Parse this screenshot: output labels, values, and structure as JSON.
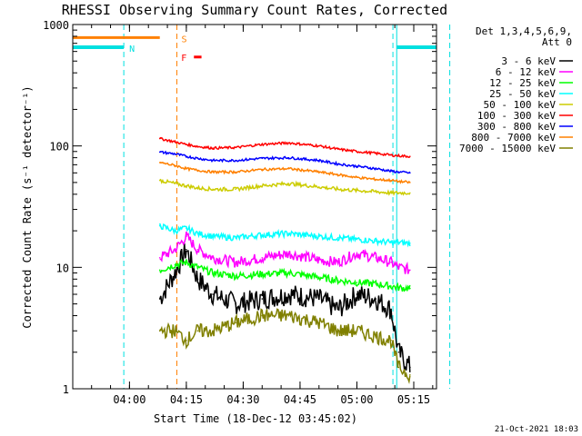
{
  "chart_data": {
    "type": "line",
    "title": "RHESSI Observing Summary Count Rates, Corrected",
    "xlabel": "Start Time (18-Dec-12 03:45:02)",
    "ylabel": "Corrected Count Rate (s⁻¹ detector⁻¹)",
    "y_scale": "log",
    "ylim": [
      1,
      1000
    ],
    "xlim": [
      "03:45:02",
      "05:21:00"
    ],
    "x_ticks": [
      "04:00",
      "04:15",
      "04:30",
      "04:45",
      "05:00",
      "05:15"
    ],
    "y_ticks": [
      "1",
      "10",
      "100",
      "1000"
    ],
    "grid": false,
    "legend_position": "top-right",
    "legend_header": [
      "Det 1,3,4,5,6,9,",
      "Att 0"
    ],
    "timestamp": "21-Oct-2021 18:03",
    "markers": {
      "night": {
        "label": "N",
        "color": "#00e0e0",
        "level": 650,
        "spans": [
          [
            "03:45:02",
            "03:58:30"
          ],
          [
            "05:10:30",
            "05:21:00"
          ]
        ],
        "lines": [
          "03:58:30",
          "05:09:30",
          "05:10:30",
          "05:24:30"
        ]
      },
      "saa": {
        "label": "S",
        "color": "#ff8000",
        "level": 780,
        "span": [
          "03:45:02",
          "04:08:00"
        ],
        "line": "04:12:30"
      },
      "flare": {
        "label": "F",
        "color": "#ff0000",
        "level": 540,
        "span": [
          "04:17:00",
          "04:19:00"
        ]
      }
    },
    "series": [
      {
        "name": "3 - 6 keV",
        "color": "#000000",
        "x": [
          "04:08",
          "04:12",
          "04:15",
          "04:18",
          "04:22",
          "04:28",
          "04:35",
          "04:42",
          "04:50",
          "04:55",
          "05:00",
          "05:05",
          "05:09",
          "05:11",
          "05:14"
        ],
        "values": [
          5.5,
          9,
          14,
          8,
          6,
          5,
          5.5,
          6,
          5.5,
          4.5,
          6,
          5.5,
          4.5,
          2,
          1.5
        ]
      },
      {
        "name": "6 - 12 keV",
        "color": "#ff00ff",
        "x": [
          "04:08",
          "04:12",
          "04:15",
          "04:18",
          "04:22",
          "04:28",
          "04:35",
          "04:42",
          "04:50",
          "04:55",
          "05:00",
          "05:05",
          "05:09",
          "05:11",
          "05:14"
        ],
        "values": [
          12,
          14,
          18,
          14,
          12,
          11,
          12,
          13,
          11.5,
          11,
          13,
          12,
          11,
          10,
          9.5
        ]
      },
      {
        "name": "12 - 25 keV",
        "color": "#00ff00",
        "x": [
          "04:08",
          "04:12",
          "04:15",
          "04:18",
          "04:22",
          "04:28",
          "04:35",
          "04:42",
          "04:50",
          "04:55",
          "05:00",
          "05:05",
          "05:09",
          "05:11",
          "05:14"
        ],
        "values": [
          9.5,
          10.5,
          11,
          10,
          9,
          8.5,
          8.8,
          9,
          8.3,
          7.8,
          7.5,
          7.3,
          7,
          6.8,
          6.7
        ]
      },
      {
        "name": "25 - 50 keV",
        "color": "#00ffff",
        "x": [
          "04:08",
          "04:12",
          "04:15",
          "04:18",
          "04:22",
          "04:28",
          "04:35",
          "04:42",
          "04:50",
          "04:55",
          "05:00",
          "05:05",
          "05:09",
          "05:11",
          "05:14"
        ],
        "values": [
          22,
          20,
          21,
          19,
          18,
          17.5,
          18.5,
          19,
          18,
          17.5,
          17,
          16.5,
          16,
          16,
          15.8
        ]
      },
      {
        "name": "50 - 100 keV",
        "color": "#cccc00",
        "x": [
          "04:08",
          "04:12",
          "04:15",
          "04:18",
          "04:22",
          "04:28",
          "04:35",
          "04:42",
          "04:50",
          "04:55",
          "05:00",
          "05:05",
          "05:09",
          "05:11",
          "05:14"
        ],
        "values": [
          52,
          49,
          47,
          45,
          44,
          44,
          47,
          49,
          46,
          44,
          43,
          42,
          41,
          41,
          41
        ]
      },
      {
        "name": "100 - 300 keV",
        "color": "#ff0000",
        "x": [
          "04:08",
          "04:12",
          "04:15",
          "04:18",
          "04:22",
          "04:28",
          "04:35",
          "04:42",
          "04:50",
          "04:55",
          "05:00",
          "05:05",
          "05:09",
          "05:11",
          "05:14"
        ],
        "values": [
          115,
          108,
          103,
          99,
          96,
          97,
          103,
          106,
          100,
          94,
          90,
          87,
          84,
          83,
          82
        ]
      },
      {
        "name": "300 - 800 keV",
        "color": "#0000ff",
        "x": [
          "04:08",
          "04:12",
          "04:15",
          "04:18",
          "04:22",
          "04:28",
          "04:35",
          "04:42",
          "04:50",
          "04:55",
          "05:00",
          "05:05",
          "05:09",
          "05:11",
          "05:14"
        ],
        "values": [
          89,
          86,
          82,
          79,
          76,
          76,
          79,
          80,
          76,
          71,
          68,
          65,
          62,
          61,
          60
        ]
      },
      {
        "name": "800 - 7000 keV",
        "color": "#ff8000",
        "x": [
          "04:08",
          "04:12",
          "04:15",
          "04:18",
          "04:22",
          "04:28",
          "04:35",
          "04:42",
          "04:50",
          "04:55",
          "05:00",
          "05:05",
          "05:09",
          "05:11",
          "05:14"
        ],
        "values": [
          73,
          69,
          65,
          63,
          61,
          61,
          64,
          65,
          61,
          58,
          55,
          53,
          52,
          51,
          50
        ]
      },
      {
        "name": "7000 - 15000 keV",
        "color": "#808000",
        "x": [
          "04:08",
          "04:12",
          "04:15",
          "04:18",
          "04:22",
          "04:28",
          "04:35",
          "04:42",
          "04:50",
          "04:55",
          "05:00",
          "05:05",
          "05:09",
          "05:11",
          "05:14"
        ],
        "values": [
          3,
          3,
          2.5,
          3,
          3,
          3.5,
          4,
          4,
          3.5,
          3,
          3,
          2.7,
          2.5,
          1.5,
          1.3
        ]
      }
    ]
  }
}
